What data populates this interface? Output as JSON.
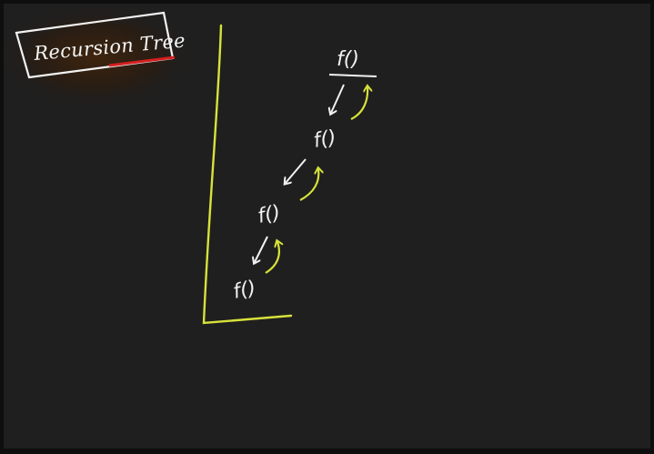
{
  "title": "Recursion Tree",
  "calls": [
    {
      "label": "f()"
    },
    {
      "label": "f()"
    },
    {
      "label": "f()"
    },
    {
      "label": "f()"
    }
  ],
  "colors": {
    "background": "#1f1f1f",
    "ink_white": "#f2f2f2",
    "ink_yellow": "#d7e23a",
    "title_underline": "#d41f1f",
    "title_glow": "#3a1a00"
  }
}
